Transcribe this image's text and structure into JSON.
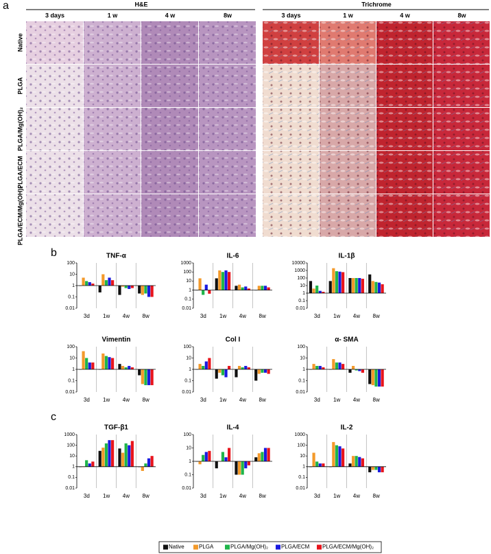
{
  "figure": {
    "panel_a": {
      "label": "a",
      "sections": [
        {
          "title": "H&E",
          "columns": [
            "3 days",
            "1 w",
            "4 w",
            "8w"
          ]
        },
        {
          "title": "Trichrome",
          "columns": [
            "3 days",
            "1 w",
            "4 w",
            "8w"
          ]
        }
      ],
      "rows": [
        "Native",
        "PLGA",
        "PLGA/Mg(OH)₂",
        "PLGA/ECM",
        "PLGA/ECM/Mg(OH)₂"
      ]
    },
    "panel_labels": [
      "b",
      "c"
    ]
  },
  "legend": {
    "series": [
      {
        "name": "Native",
        "color": "#111111"
      },
      {
        "name": "PLGA",
        "color": "#f39a2b"
      },
      {
        "name": "PLGA/Mg(OH)₂",
        "color": "#1fb54a"
      },
      {
        "name": "PLGA/ECM",
        "color": "#1a1adf"
      },
      {
        "name": "PLGA/ECM/Mg(OH)₂",
        "color": "#e8141c"
      }
    ]
  },
  "chart_data": [
    {
      "type": "bar",
      "title": "TNF-α",
      "y_scale": "log",
      "categories": [
        "3d",
        "1w",
        "4w",
        "8w"
      ],
      "ylim": [
        0.01,
        100
      ],
      "yticks": [
        0.01,
        0.1,
        1,
        10,
        100
      ],
      "series": [
        {
          "values": [
            1,
            0.25,
            0.15,
            0.2
          ]
        },
        {
          "values": [
            5,
            10,
            0.8,
            0.15
          ]
        },
        {
          "values": [
            2.5,
            3,
            0.6,
            0.2
          ]
        },
        {
          "values": [
            2,
            5,
            0.5,
            0.1
          ]
        },
        {
          "values": [
            1.5,
            3,
            0.6,
            0.1
          ]
        }
      ]
    },
    {
      "type": "bar",
      "title": "IL-6",
      "y_scale": "log",
      "categories": [
        "3d",
        "1w",
        "4w",
        "8w"
      ],
      "ylim": [
        0.01,
        1000
      ],
      "yticks": [
        0.01,
        0.1,
        1,
        10,
        100,
        1000
      ],
      "series": [
        {
          "values": [
            1,
            20,
            3,
            1
          ]
        },
        {
          "values": [
            20,
            150,
            4,
            3
          ]
        },
        {
          "values": [
            0.3,
            100,
            2,
            3
          ]
        },
        {
          "values": [
            4,
            150,
            2.5,
            3
          ]
        },
        {
          "values": [
            0.4,
            100,
            1.5,
            2
          ]
        }
      ]
    },
    {
      "type": "bar",
      "title": "IL-1β",
      "y_scale": "log",
      "categories": [
        "3d",
        "1w",
        "4w",
        "8w"
      ],
      "ylim": [
        0.01,
        10000
      ],
      "yticks": [
        0.01,
        0.1,
        1,
        10,
        100,
        1000,
        10000
      ],
      "series": [
        {
          "values": [
            40,
            40,
            100,
            300
          ]
        },
        {
          "values": [
            4,
            2000,
            100,
            40
          ]
        },
        {
          "values": [
            10,
            800,
            100,
            30
          ]
        },
        {
          "values": [
            2,
            700,
            100,
            25
          ]
        },
        {
          "values": [
            1.5,
            600,
            80,
            15
          ]
        }
      ]
    },
    {
      "type": "bar",
      "title": "Vimentin",
      "y_scale": "log",
      "categories": [
        "3d",
        "1w",
        "4w",
        "8w"
      ],
      "ylim": [
        0.01,
        100
      ],
      "yticks": [
        0.01,
        0.1,
        1,
        10,
        100
      ],
      "series": [
        {
          "values": [
            1,
            1,
            3,
            0.3
          ]
        },
        {
          "values": [
            40,
            25,
            2,
            0.05
          ]
        },
        {
          "values": [
            10,
            15,
            1.5,
            0.04
          ]
        },
        {
          "values": [
            4,
            12,
            2,
            0.04
          ]
        },
        {
          "values": [
            4,
            10,
            1.5,
            0.04
          ]
        }
      ]
    },
    {
      "type": "bar",
      "title": "Col I",
      "y_scale": "log",
      "categories": [
        "3d",
        "1w",
        "4w",
        "8w"
      ],
      "ylim": [
        0.01,
        100
      ],
      "yticks": [
        0.01,
        0.1,
        1,
        10,
        100
      ],
      "series": [
        {
          "values": [
            1,
            0.15,
            0.2,
            0.1
          ]
        },
        {
          "values": [
            3,
            0.5,
            2,
            0.4
          ]
        },
        {
          "values": [
            2,
            0.3,
            1.5,
            0.5
          ]
        },
        {
          "values": [
            5,
            0.2,
            2,
            0.5
          ]
        },
        {
          "values": [
            10,
            2,
            1.5,
            0.4
          ]
        }
      ]
    },
    {
      "type": "bar",
      "title": "α- SMA",
      "y_scale": "log",
      "categories": [
        "3d",
        "1w",
        "4w",
        "8w"
      ],
      "ylim": [
        0.01,
        100
      ],
      "yticks": [
        0.01,
        0.1,
        1,
        10,
        100
      ],
      "series": [
        {
          "values": [
            1,
            1,
            0.5,
            0.05
          ]
        },
        {
          "values": [
            3,
            8,
            2,
            0.04
          ]
        },
        {
          "values": [
            2,
            4,
            0.8,
            0.03
          ]
        },
        {
          "values": [
            2,
            4,
            0.7,
            0.03
          ]
        },
        {
          "values": [
            1.5,
            3,
            0.5,
            0.03
          ]
        }
      ]
    },
    {
      "type": "bar",
      "title": "TGF-β1",
      "y_scale": "log",
      "categories": [
        "3d",
        "1w",
        "4w",
        "8w"
      ],
      "ylim": [
        0.01,
        1000
      ],
      "yticks": [
        0.01,
        0.1,
        1,
        10,
        100,
        1000
      ],
      "series": [
        {
          "values": [
            1,
            30,
            50,
            1
          ]
        },
        {
          "values": [
            1,
            60,
            20,
            0.4
          ]
        },
        {
          "values": [
            4,
            150,
            150,
            2
          ]
        },
        {
          "values": [
            2,
            300,
            100,
            6
          ]
        },
        {
          "values": [
            3,
            300,
            250,
            10
          ]
        }
      ]
    },
    {
      "type": "bar",
      "title": "IL-4",
      "y_scale": "log",
      "categories": [
        "3d",
        "1w",
        "4w",
        "8w"
      ],
      "ylim": [
        0.01,
        100
      ],
      "yticks": [
        0.01,
        0.1,
        1,
        10,
        100
      ],
      "series": [
        {
          "values": [
            1,
            0.3,
            0.1,
            2
          ]
        },
        {
          "values": [
            0.6,
            1,
            0.1,
            4
          ]
        },
        {
          "values": [
            3,
            5,
            0.1,
            5
          ]
        },
        {
          "values": [
            5,
            2,
            0.3,
            10
          ]
        },
        {
          "values": [
            6,
            10,
            0.5,
            10
          ]
        }
      ]
    },
    {
      "type": "bar",
      "title": "IL-2",
      "y_scale": "log",
      "categories": [
        "3d",
        "1w",
        "4w",
        "8w"
      ],
      "ylim": [
        0.01,
        1000
      ],
      "yticks": [
        0.01,
        0.1,
        1,
        10,
        100,
        1000
      ],
      "series": [
        {
          "values": [
            1,
            1,
            2,
            0.3
          ]
        },
        {
          "values": [
            20,
            200,
            10,
            0.5
          ]
        },
        {
          "values": [
            3,
            100,
            10,
            0.5
          ]
        },
        {
          "values": [
            2,
            80,
            8,
            0.3
          ]
        },
        {
          "values": [
            2,
            50,
            6,
            0.3
          ]
        }
      ]
    }
  ]
}
